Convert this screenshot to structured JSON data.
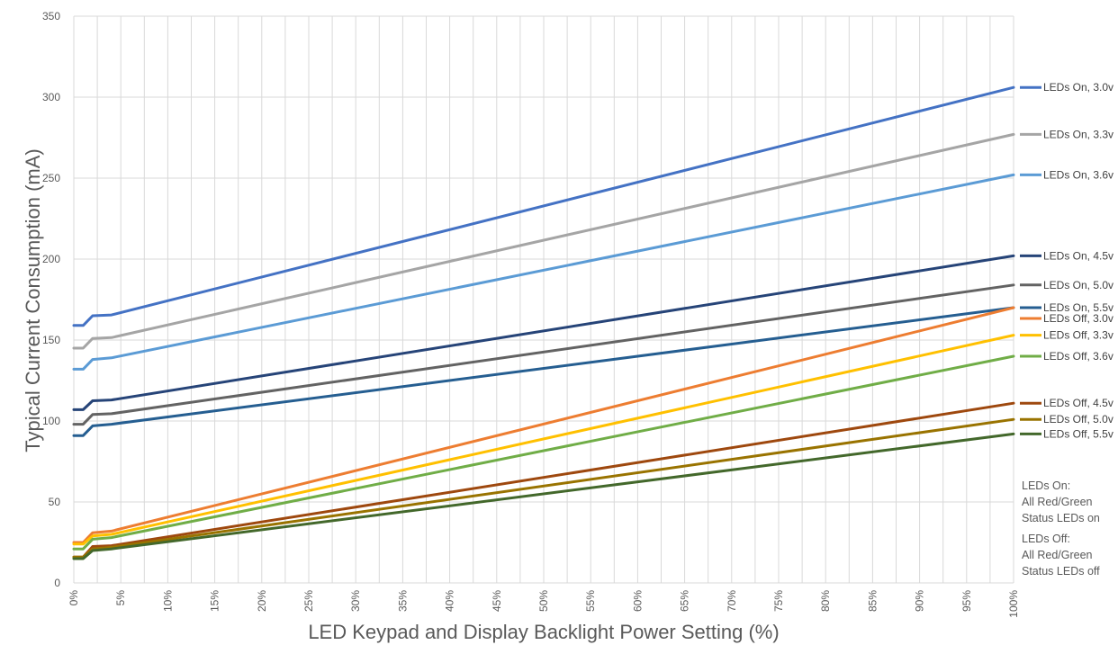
{
  "chart_data": {
    "type": "line",
    "title": "",
    "xlabel": "LED Keypad and Display Backlight Power Setting (%)",
    "ylabel": "Typical Current Consumption (mA)",
    "ylim": [
      0,
      350
    ],
    "xlim": [
      0,
      100
    ],
    "grid": true,
    "legend_placement": "right",
    "yticks": [
      "0",
      "50",
      "100",
      "150",
      "200",
      "250",
      "300",
      "350"
    ],
    "xticks": [
      "0%",
      "5%",
      "10%",
      "15%",
      "20%",
      "25%",
      "30%",
      "35%",
      "40%",
      "45%",
      "50%",
      "55%",
      "60%",
      "65%",
      "70%",
      "75%",
      "80%",
      "85%",
      "90%",
      "95%",
      "100%"
    ],
    "series": [
      {
        "name": "LEDs On, 3.0v",
        "color": "#4472c4",
        "points": [
          [
            0,
            159
          ],
          [
            1,
            159
          ],
          [
            2,
            165
          ],
          [
            4,
            165.5
          ],
          [
            100,
            306
          ]
        ]
      },
      {
        "name": "LEDs On, 3.3v",
        "color": "#a5a5a5",
        "points": [
          [
            0,
            145
          ],
          [
            1,
            145
          ],
          [
            2,
            151
          ],
          [
            4,
            151.5
          ],
          [
            100,
            277
          ]
        ]
      },
      {
        "name": "LEDs On, 3.6v",
        "color": "#5b9bd5",
        "points": [
          [
            0,
            132
          ],
          [
            1,
            132
          ],
          [
            2,
            138
          ],
          [
            4,
            139
          ],
          [
            100,
            252
          ]
        ]
      },
      {
        "name": "LEDs On, 4.5v",
        "color": "#264478",
        "points": [
          [
            0,
            107
          ],
          [
            1,
            107
          ],
          [
            2,
            112.5
          ],
          [
            4,
            113
          ],
          [
            100,
            202
          ]
        ]
      },
      {
        "name": "LEDs On, 5.0v",
        "color": "#636363",
        "points": [
          [
            0,
            98
          ],
          [
            1,
            98
          ],
          [
            2,
            104
          ],
          [
            4,
            104.5
          ],
          [
            100,
            184
          ]
        ]
      },
      {
        "name": "LEDs On, 5.5v",
        "color": "#255e91",
        "points": [
          [
            0,
            91
          ],
          [
            1,
            91
          ],
          [
            2,
            97
          ],
          [
            4,
            98
          ],
          [
            100,
            170
          ]
        ]
      },
      {
        "name": "LEDs Off, 3.0v",
        "color": "#ed7d31",
        "points": [
          [
            0,
            25
          ],
          [
            1,
            25
          ],
          [
            2,
            31
          ],
          [
            4,
            32
          ],
          [
            100,
            170
          ]
        ]
      },
      {
        "name": "LEDs Off, 3.3v",
        "color": "#ffc000",
        "points": [
          [
            0,
            24
          ],
          [
            1,
            24
          ],
          [
            2,
            29
          ],
          [
            4,
            30
          ],
          [
            100,
            153
          ]
        ]
      },
      {
        "name": "LEDs Off, 3.6v",
        "color": "#70ad47",
        "points": [
          [
            0,
            21
          ],
          [
            1,
            21
          ],
          [
            2,
            27
          ],
          [
            4,
            28
          ],
          [
            100,
            140
          ]
        ]
      },
      {
        "name": "LEDs Off, 4.5v",
        "color": "#9e480e",
        "points": [
          [
            0,
            16
          ],
          [
            1,
            16
          ],
          [
            2,
            22.5
          ],
          [
            4,
            23
          ],
          [
            100,
            111
          ]
        ]
      },
      {
        "name": "LEDs Off, 5.0v",
        "color": "#997300",
        "points": [
          [
            0,
            16
          ],
          [
            1,
            16
          ],
          [
            2,
            21
          ],
          [
            4,
            22
          ],
          [
            100,
            101
          ]
        ]
      },
      {
        "name": "LEDs Off, 5.5v",
        "color": "#43682b",
        "points": [
          [
            0,
            15
          ],
          [
            1,
            15
          ],
          [
            2,
            20
          ],
          [
            4,
            21
          ],
          [
            100,
            92
          ]
        ]
      }
    ]
  },
  "notes": {
    "on_title": "LEDs On:",
    "on_line1": "All Red/Green",
    "on_line2": "Status LEDs on",
    "off_title": "LEDs Off:",
    "off_line1": "All Red/Green",
    "off_line2": "Status LEDs off"
  }
}
